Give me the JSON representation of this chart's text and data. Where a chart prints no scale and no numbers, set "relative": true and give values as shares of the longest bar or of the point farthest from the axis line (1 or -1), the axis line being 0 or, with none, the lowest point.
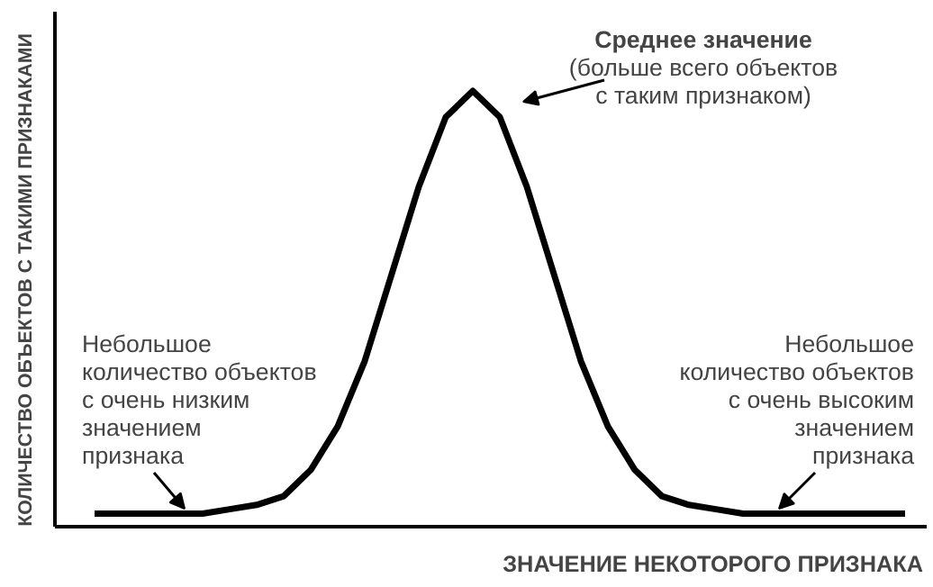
{
  "chart_data": {
    "type": "line",
    "relative": true,
    "xlabel": "ЗНАЧЕНИЕ НЕКОТОРОГО ПРИЗНАКА",
    "ylabel": "КОЛИЧЕСТВО ОБЪЕКТОВ С ТАКИМИ ПРИЗНАКАМИ",
    "categories": [
      null,
      null,
      null,
      null,
      null,
      null,
      null,
      null,
      null,
      null,
      null,
      null,
      null,
      null,
      null,
      null,
      null,
      null,
      null,
      null,
      null,
      null,
      null,
      null,
      null,
      null,
      null,
      null,
      null,
      null,
      null
    ],
    "series": [
      {
        "color": "#000000",
        "values": [
          0.03,
          0.03,
          0.03,
          0.03,
          0.03,
          0.04,
          0.05,
          0.07,
          0.13,
          0.23,
          0.38,
          0.58,
          0.78,
          0.94,
          1.0,
          0.94,
          0.78,
          0.58,
          0.38,
          0.23,
          0.13,
          0.07,
          0.05,
          0.04,
          0.03,
          0.03,
          0.03,
          0.03,
          0.03,
          0.03,
          0.03
        ]
      }
    ],
    "annotations": [
      "Среднее значение\n(больше всего объектов\nс таким признаком)",
      "Небольшое\nколичество объектов\nс очень низким\nзначением\nпризнака",
      "Небольшое\nколичество объектов\nс очень высоким\nзначением\nпризнака"
    ],
    "grid": false,
    "marker": "none",
    "line_style": "solid"
  }
}
